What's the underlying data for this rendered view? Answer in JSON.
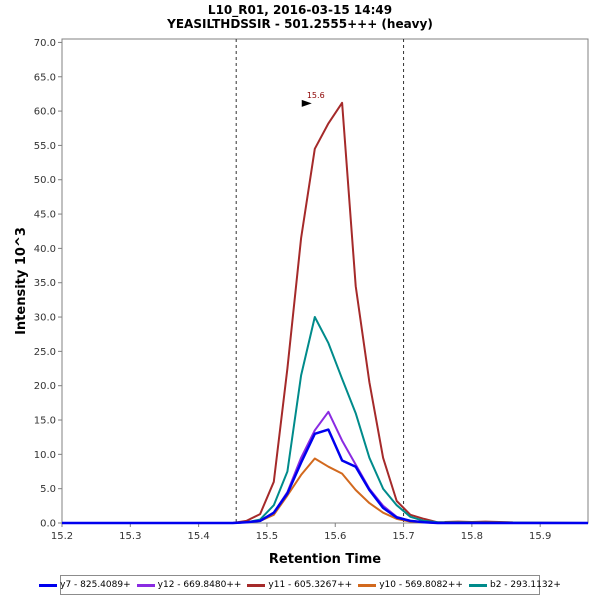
{
  "chart_data": {
    "type": "line",
    "title": "L10_R01, 2016-03-15 14:49",
    "subtitle": "YEASILTHDSSIR - 501.2555+++ (heavy)",
    "xlabel": "Retention Time",
    "ylabel": "Intensity 10^3",
    "xlim": [
      15.2,
      15.97
    ],
    "ylim": [
      0,
      70.5
    ],
    "x_ticks": [
      "15.2",
      "15.3",
      "15.4",
      "15.5",
      "15.6",
      "15.7",
      "15.8",
      "15.9"
    ],
    "y_ticks": [
      "0.0",
      "5.0",
      "10.0",
      "15.0",
      "20.0",
      "25.0",
      "30.0",
      "35.0",
      "40.0",
      "45.0",
      "50.0",
      "55.0",
      "60.0",
      "65.0",
      "70.0"
    ],
    "grid": false,
    "legend_position": "bottom",
    "vertical_markers": [
      15.455,
      15.7
    ],
    "peak_annotation": {
      "x": 15.57,
      "y": 61.2,
      "label": "15.6",
      "color": "#8b0000"
    },
    "series": [
      {
        "name": "y7 - 825.4089+",
        "color": "#0000ee",
        "width": 2.5,
        "x": [
          15.2,
          15.45,
          15.47,
          15.49,
          15.51,
          15.53,
          15.55,
          15.57,
          15.59,
          15.61,
          15.63,
          15.65,
          15.67,
          15.69,
          15.71,
          15.73,
          15.75,
          15.97
        ],
        "y": [
          0,
          0,
          0.1,
          0.3,
          1.5,
          4.3,
          8.8,
          13.0,
          13.6,
          9.1,
          8.2,
          4.8,
          2.2,
          0.8,
          0.3,
          0.1,
          0,
          0
        ]
      },
      {
        "name": "y12 - 669.8480++",
        "color": "#8a2be2",
        "width": 2,
        "x": [
          15.2,
          15.45,
          15.47,
          15.49,
          15.51,
          15.53,
          15.55,
          15.57,
          15.59,
          15.61,
          15.63,
          15.65,
          15.67,
          15.69,
          15.71,
          15.73,
          15.75,
          15.97
        ],
        "y": [
          0,
          0,
          0.1,
          0.3,
          1.5,
          4.5,
          9.5,
          13.5,
          16.2,
          12.0,
          8.5,
          5.0,
          2.5,
          0.9,
          0.3,
          0.1,
          0,
          0
        ]
      },
      {
        "name": "y11 - 605.3267++",
        "color": "#a52a2a",
        "width": 2,
        "x": [
          15.2,
          15.45,
          15.47,
          15.49,
          15.51,
          15.53,
          15.55,
          15.57,
          15.59,
          15.61,
          15.63,
          15.65,
          15.67,
          15.69,
          15.71,
          15.73,
          15.75,
          15.97
        ],
        "y": [
          0,
          0,
          0.3,
          1.3,
          6.0,
          22.5,
          41.5,
          54.5,
          58.2,
          61.2,
          34.5,
          20.5,
          9.5,
          3.2,
          1.2,
          0.6,
          0.1,
          0
        ]
      },
      {
        "name": "y10 - 569.8082++",
        "color": "#d2691e",
        "width": 2,
        "x": [
          15.2,
          15.45,
          15.47,
          15.49,
          15.51,
          15.53,
          15.55,
          15.57,
          15.59,
          15.61,
          15.63,
          15.65,
          15.67,
          15.69,
          15.71,
          15.73,
          15.75,
          15.97
        ],
        "y": [
          0,
          0,
          0.1,
          0.3,
          1.2,
          4.0,
          7.0,
          9.4,
          8.2,
          7.2,
          4.8,
          2.9,
          1.5,
          0.6,
          0.2,
          0.1,
          0,
          0
        ]
      },
      {
        "name": "b2 - 293.1132+",
        "color": "#008b8b",
        "width": 2,
        "x": [
          15.2,
          15.45,
          15.47,
          15.49,
          15.51,
          15.53,
          15.55,
          15.57,
          15.59,
          15.61,
          15.63,
          15.65,
          15.67,
          15.69,
          15.71,
          15.73,
          15.75,
          15.97
        ],
        "y": [
          0,
          0,
          0.1,
          0.5,
          2.6,
          7.5,
          21.5,
          30.0,
          26.2,
          21.0,
          16.0,
          9.5,
          5.0,
          2.6,
          0.9,
          0.3,
          0.1,
          0
        ]
      }
    ],
    "baseline_noise": {
      "name": "y11 - 605.3267++",
      "color": "#a52a2a",
      "x": [
        15.76,
        15.78,
        15.8,
        15.82,
        15.84,
        15.86
      ],
      "y": [
        0.15,
        0.2,
        0.15,
        0.2,
        0.15,
        0.1
      ]
    }
  }
}
